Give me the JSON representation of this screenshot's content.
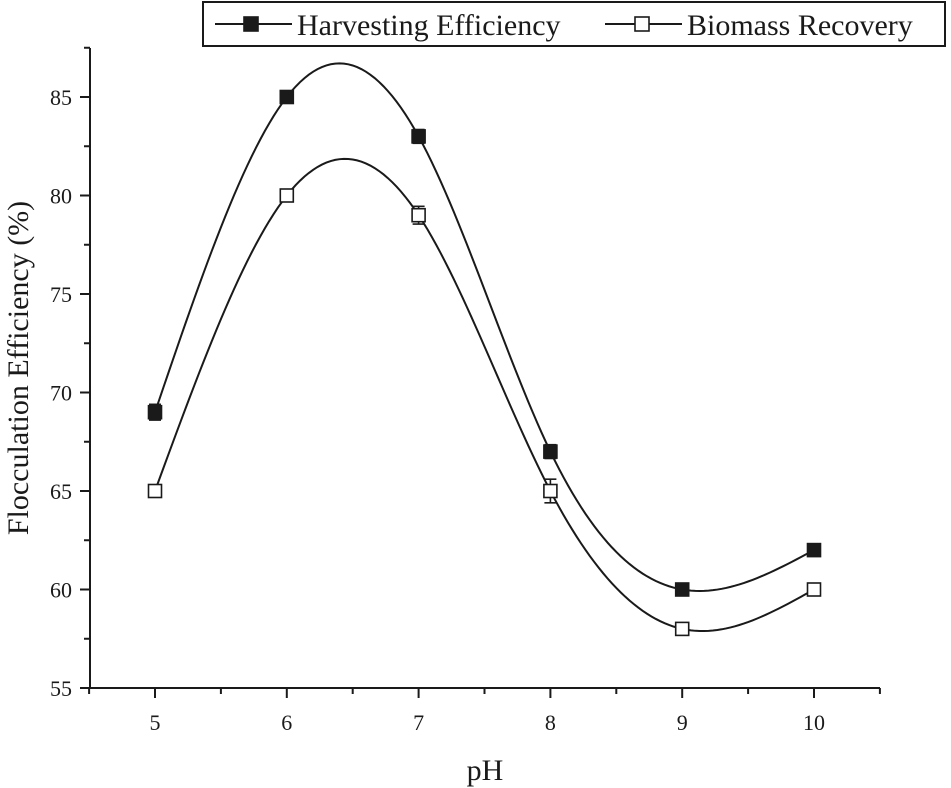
{
  "chart_data": {
    "type": "line",
    "title": "",
    "xlabel": "pH",
    "ylabel": "Flocculation Efficiency (%)",
    "x": [
      5,
      6,
      7,
      8,
      9,
      10
    ],
    "xticks": [
      5,
      6,
      7,
      8,
      9,
      10
    ],
    "yticks": [
      55,
      60,
      65,
      70,
      75,
      80,
      85
    ],
    "xlim": [
      4.5,
      10.5
    ],
    "ylim": [
      55,
      88
    ],
    "grid": false,
    "legend_position": "top-right",
    "series": [
      {
        "name": "Harvesting Efficiency",
        "marker": "filled-square",
        "color": "#1a1a1a",
        "values": [
          69,
          85,
          83,
          67,
          60,
          62
        ],
        "errors": [
          0.4,
          0.15,
          0.35,
          0.35,
          0.15,
          0.15
        ]
      },
      {
        "name": "Biomass Recovery",
        "marker": "open-square",
        "color": "#1a1a1a",
        "values": [
          65,
          80,
          79,
          65,
          58,
          60
        ],
        "errors": [
          0.15,
          0.15,
          0.45,
          0.6,
          0.15,
          0.3
        ]
      }
    ]
  }
}
